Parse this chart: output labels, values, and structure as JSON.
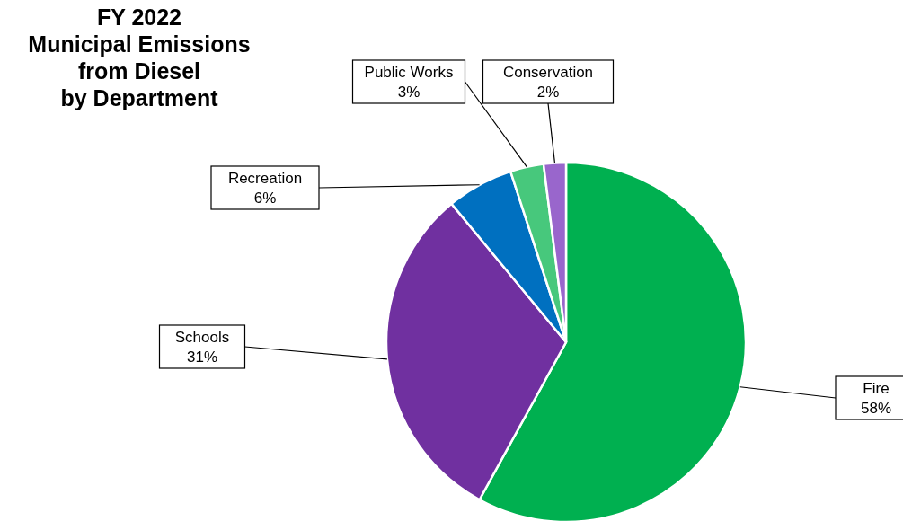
{
  "chart_data": {
    "type": "pie",
    "title": "FY 2022\nMunicipal Emissions\nfrom Diesel\nby Department",
    "categories": [
      "Fire",
      "Schools",
      "Recreation",
      "Public Works",
      "Conservation"
    ],
    "values": [
      58,
      31,
      6,
      3,
      2
    ],
    "value_labels": [
      "58%",
      "31%",
      "6%",
      "3%",
      "2%"
    ],
    "colors": [
      "#00b050",
      "#7030a0",
      "#0070c0",
      "#47c87c",
      "#9966cc"
    ]
  }
}
